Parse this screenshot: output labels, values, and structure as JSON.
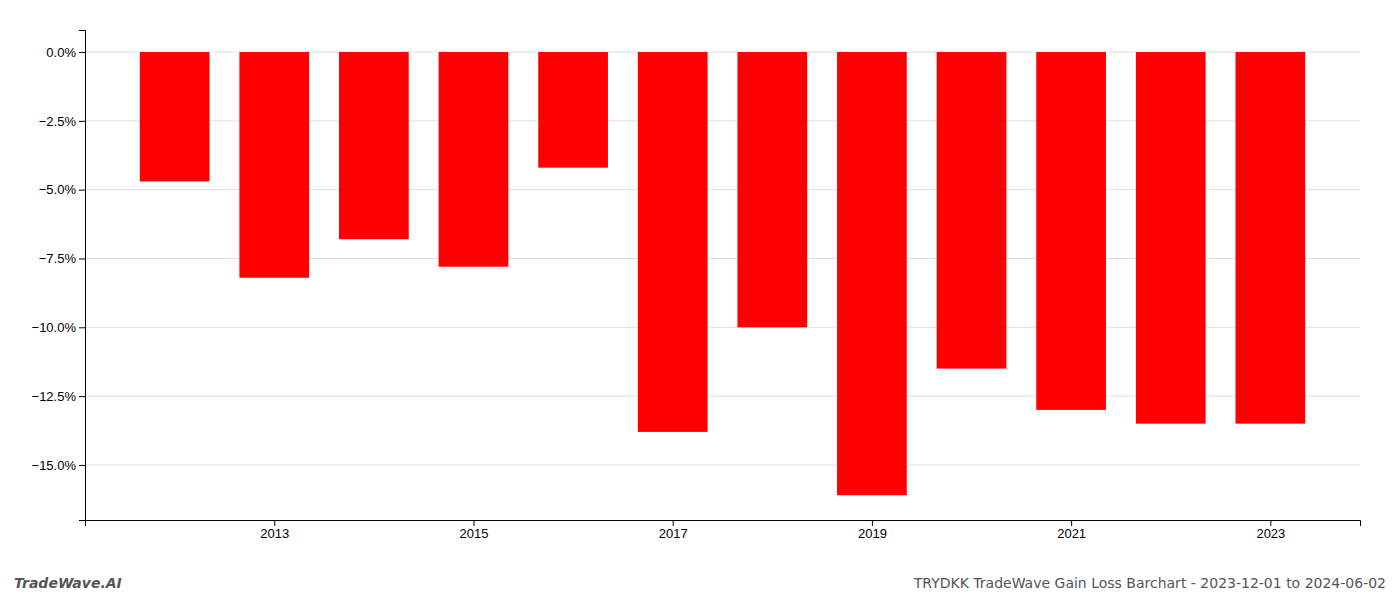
{
  "chart_data": {
    "type": "bar",
    "x": [
      2012,
      2013,
      2014,
      2015,
      2016,
      2017,
      2018,
      2019,
      2020,
      2021,
      2022,
      2023
    ],
    "values": [
      -4.7,
      -8.2,
      -6.8,
      -7.8,
      -4.2,
      -13.8,
      -10.0,
      -16.1,
      -11.5,
      -13.0,
      -13.5,
      -13.5
    ],
    "color": "#ff0000",
    "xlim": [
      2011.1,
      2023.9
    ],
    "xticks": [
      2013,
      2015,
      2017,
      2019,
      2021,
      2023
    ],
    "ylim": [
      -17.0,
      0.8
    ],
    "yticks": [
      {
        "value": 0.0,
        "label": "0.0%"
      },
      {
        "value": -2.5,
        "label": "−2.5%"
      },
      {
        "value": -5.0,
        "label": "−5.0%"
      },
      {
        "value": -7.5,
        "label": "−7.5%"
      },
      {
        "value": -10.0,
        "label": "−10.0%"
      },
      {
        "value": -12.5,
        "label": "−12.5%"
      },
      {
        "value": -15.0,
        "label": "−15.0%"
      }
    ],
    "grid": true,
    "annotations": [
      "TradeWave.AI",
      "TRYDKK TradeWave Gain Loss Barchart - 2023-12-01 to 2024-06-02"
    ]
  }
}
